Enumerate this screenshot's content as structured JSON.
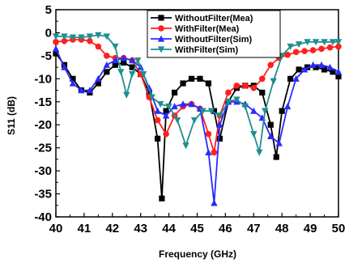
{
  "chart_data": {
    "type": "line",
    "title": "",
    "xlabel": "Frequency (GHz)",
    "ylabel": "S11 (dB)",
    "xlim": [
      40,
      50
    ],
    "ylim": [
      -40,
      5
    ],
    "xticks": [
      "40",
      "41",
      "42",
      "43",
      "44",
      "45",
      "46",
      "47",
      "48",
      "49",
      "50"
    ],
    "yticks": [
      "5",
      "0",
      "-5",
      "-10",
      "-15",
      "-20",
      "-25",
      "-30",
      "-35",
      "-40"
    ],
    "grid": false,
    "legend_position": "top-right",
    "series": [
      {
        "name": "WithoutFilter(Mea)",
        "color": "#000000",
        "marker": "square",
        "x": [
          40.0,
          40.3,
          40.6,
          40.9,
          41.2,
          41.5,
          41.8,
          42.1,
          42.4,
          42.7,
          43.0,
          43.3,
          43.6,
          43.75,
          43.9,
          44.2,
          44.5,
          44.8,
          45.1,
          45.4,
          45.6,
          45.8,
          46.1,
          46.4,
          46.7,
          47.0,
          47.3,
          47.6,
          47.8,
          48.0,
          48.3,
          48.6,
          48.9,
          49.2,
          49.5,
          49.8,
          50.0
        ],
        "values": [
          -4.5,
          -7.0,
          -10.0,
          -12.5,
          -13.0,
          -11.0,
          -8.5,
          -7.0,
          -6.5,
          -7.5,
          -9.0,
          -13.0,
          -23.0,
          -36.0,
          -17.0,
          -13.0,
          -11.0,
          -10.0,
          -10.0,
          -11.0,
          -17.0,
          -23.0,
          -15.0,
          -12.0,
          -11.5,
          -11.5,
          -13.0,
          -20.0,
          -27.0,
          -17.0,
          -10.0,
          -8.0,
          -7.5,
          -7.5,
          -8.0,
          -8.5,
          -9.5
        ]
      },
      {
        "name": "WithFilter(Mea)",
        "color": "#ff2020",
        "marker": "circle",
        "x": [
          40.0,
          40.3,
          40.6,
          40.9,
          41.2,
          41.5,
          41.8,
          42.1,
          42.4,
          42.7,
          43.0,
          43.3,
          43.6,
          43.9,
          44.2,
          44.5,
          44.8,
          45.1,
          45.4,
          45.6,
          45.8,
          46.1,
          46.4,
          46.7,
          47.0,
          47.3,
          47.6,
          47.9,
          48.2,
          48.5,
          48.8,
          49.1,
          49.4,
          49.7,
          50.0
        ],
        "values": [
          -2.0,
          -1.8,
          -1.5,
          -1.5,
          -1.8,
          -3.0,
          -5.0,
          -5.5,
          -5.5,
          -6.0,
          -9.0,
          -14.0,
          -19.0,
          -22.0,
          -18.0,
          -16.0,
          -15.5,
          -16.5,
          -22.0,
          -26.0,
          -18.0,
          -13.0,
          -11.5,
          -11.5,
          -12.0,
          -10.0,
          -7.0,
          -5.5,
          -4.8,
          -4.2,
          -4.0,
          -3.8,
          -3.5,
          -3.2,
          -3.0
        ]
      },
      {
        "name": "WithoutFilter(Sim)",
        "color": "#2a2aff",
        "marker": "triangle",
        "x": [
          40.0,
          40.3,
          40.6,
          40.9,
          41.2,
          41.5,
          41.8,
          42.1,
          42.4,
          42.7,
          43.0,
          43.3,
          43.6,
          43.9,
          44.2,
          44.5,
          44.8,
          45.1,
          45.4,
          45.6,
          45.8,
          46.1,
          46.4,
          46.7,
          47.0,
          47.3,
          47.6,
          47.9,
          48.2,
          48.5,
          48.8,
          49.1,
          49.4,
          49.7,
          50.0
        ],
        "values": [
          -3.5,
          -7.5,
          -11.0,
          -12.5,
          -12.5,
          -10.0,
          -7.0,
          -6.0,
          -5.5,
          -6.0,
          -7.5,
          -12.0,
          -17.0,
          -18.0,
          -16.0,
          -15.5,
          -15.5,
          -16.5,
          -26.0,
          -37.0,
          -20.0,
          -15.0,
          -15.0,
          -15.5,
          -17.0,
          -18.5,
          -22.5,
          -24.0,
          -16.0,
          -10.0,
          -8.0,
          -7.0,
          -7.0,
          -7.5,
          -8.5
        ]
      },
      {
        "name": "WithFilter(Sim)",
        "color": "#1f8f8f",
        "marker": "triangle-down",
        "x": [
          40.0,
          40.3,
          40.6,
          40.9,
          41.2,
          41.5,
          41.8,
          42.1,
          42.3,
          42.5,
          42.7,
          42.9,
          43.1,
          43.4,
          43.7,
          44.0,
          44.3,
          44.6,
          44.9,
          45.2,
          45.5,
          45.8,
          46.1,
          46.4,
          46.7,
          47.0,
          47.2,
          47.4,
          47.7,
          48.0,
          48.3,
          48.6,
          48.9,
          49.2,
          49.5,
          49.8,
          50.0
        ],
        "values": [
          -0.8,
          -0.8,
          -1.0,
          -1.0,
          -0.8,
          -0.5,
          -0.8,
          -3.0,
          -8.5,
          -13.5,
          -9.0,
          -6.0,
          -9.0,
          -14.0,
          -15.5,
          -16.0,
          -19.0,
          -24.5,
          -19.0,
          -17.0,
          -17.0,
          -18.0,
          -15.0,
          -14.5,
          -16.0,
          -22.0,
          -26.0,
          -17.0,
          -10.5,
          -5.0,
          -3.0,
          -2.5,
          -2.0,
          -2.0,
          -2.0,
          -2.0,
          -2.0
        ]
      }
    ]
  }
}
